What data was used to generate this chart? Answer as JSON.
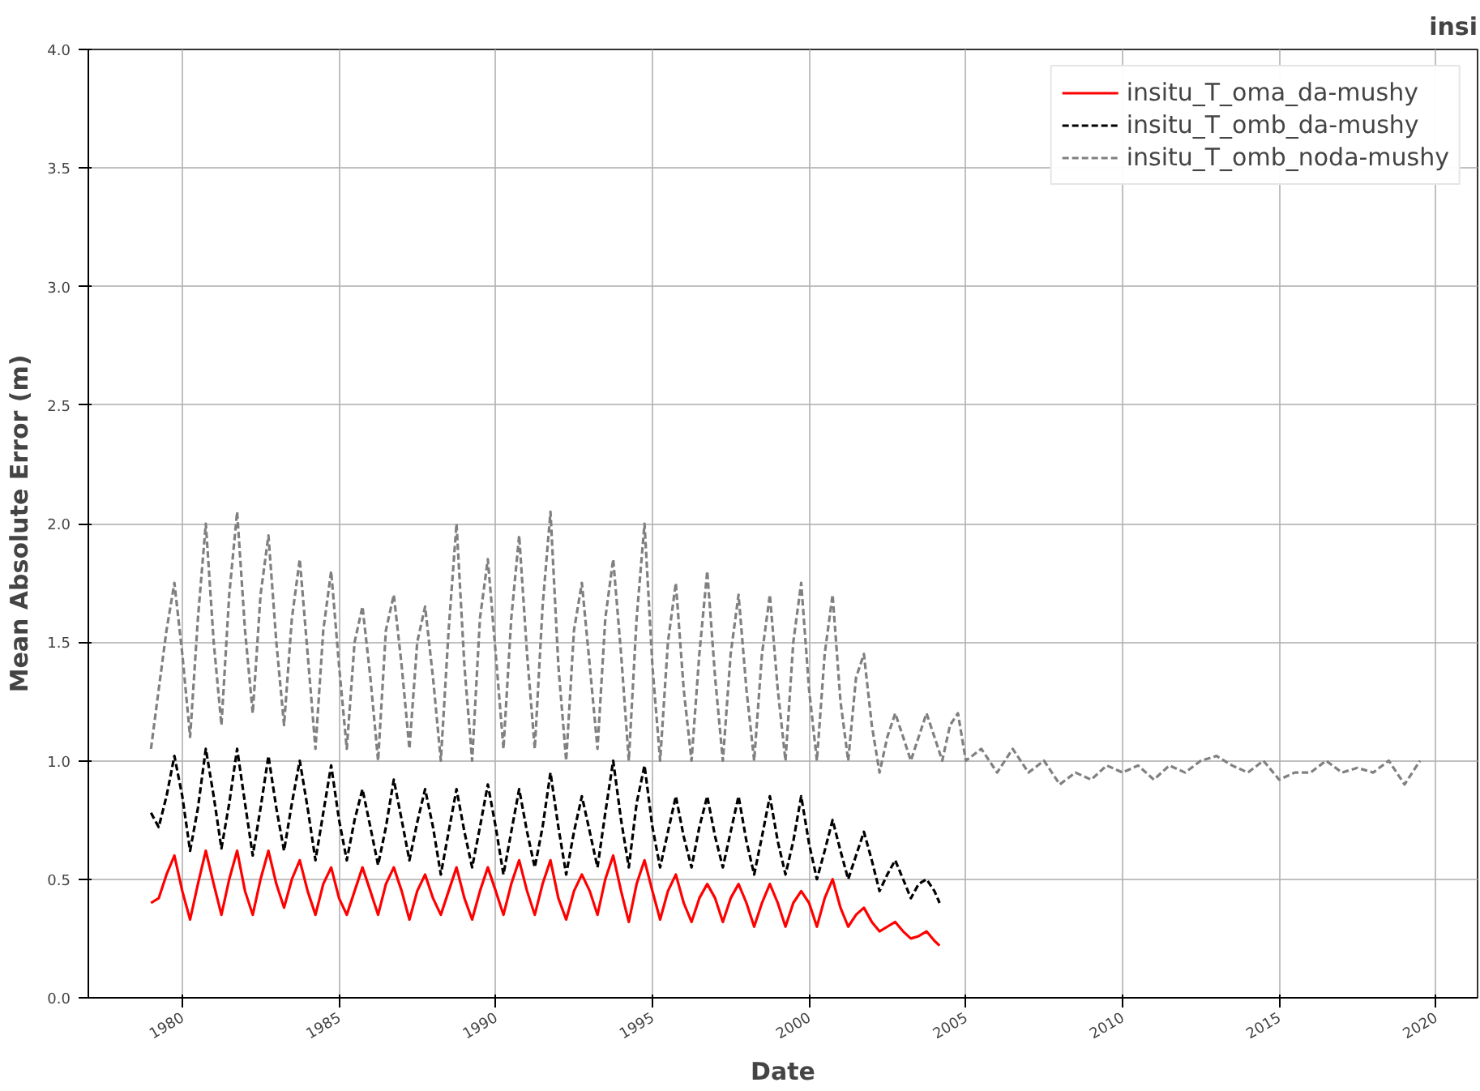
{
  "chart_data": {
    "type": "line",
    "title": "insi",
    "xlabel": "Date",
    "ylabel": "Mean Absolute Error (m)",
    "xlim": [
      "1977-01",
      "2021-05"
    ],
    "ylim": [
      0,
      4
    ],
    "xticks": [
      {
        "value": "1980",
        "label": "1980"
      },
      {
        "value": "1985",
        "label": "1985"
      },
      {
        "value": "1990",
        "label": "1990"
      },
      {
        "value": "1995",
        "label": "1995"
      },
      {
        "value": "2000",
        "label": "2000"
      },
      {
        "value": "2005",
        "label": "2005"
      },
      {
        "value": "2010",
        "label": "2010"
      },
      {
        "value": "2015",
        "label": "2015"
      },
      {
        "value": "2020",
        "label": "2020"
      }
    ],
    "yticks": [
      {
        "value": 0,
        "label": "0.0"
      },
      {
        "value": 0.5,
        "label": "0.5"
      },
      {
        "value": 1,
        "label": "1.0"
      },
      {
        "value": 1.5,
        "label": "1.5"
      },
      {
        "value": 2,
        "label": "2.0"
      },
      {
        "value": 2.5,
        "label": "2.5"
      },
      {
        "value": 3,
        "label": "3.0"
      },
      {
        "value": 3.5,
        "label": "3.5"
      },
      {
        "value": 4,
        "label": "4.0"
      }
    ],
    "grid": true,
    "legend": "top right",
    "series": [
      {
        "name": "insitu_T_oma_da-mushy",
        "color": "#ff0000",
        "line_style": "solid",
        "values": [
          0.4,
          0.42,
          0.52,
          0.6,
          0.45,
          0.33,
          0.48,
          0.62,
          0.48,
          0.35,
          0.5,
          0.62,
          0.45,
          0.35,
          0.5,
          0.62,
          0.48,
          0.38,
          0.5,
          0.58,
          0.45,
          0.35,
          0.48,
          0.55,
          0.42,
          0.35,
          0.45,
          0.55,
          0.45,
          0.35,
          0.48,
          0.55,
          0.45,
          0.33,
          0.45,
          0.52,
          0.42,
          0.35,
          0.45,
          0.55,
          0.42,
          0.33,
          0.45,
          0.55,
          0.45,
          0.35,
          0.48,
          0.58,
          0.45,
          0.35,
          0.48,
          0.58,
          0.42,
          0.33,
          0.45,
          0.52,
          0.45,
          0.35,
          0.5,
          0.6,
          0.45,
          0.32,
          0.48,
          0.58,
          0.45,
          0.33,
          0.45,
          0.52,
          0.4,
          0.32,
          0.42,
          0.48,
          0.42,
          0.32,
          0.42,
          0.48,
          0.4,
          0.3,
          0.4,
          0.48,
          0.4,
          0.3,
          0.4,
          0.45,
          0.4,
          0.3,
          0.42,
          0.5,
          0.38,
          0.3,
          0.35,
          0.38,
          0.32,
          0.28,
          0.3,
          0.32,
          0.28,
          0.25,
          0.26,
          0.28,
          0.24,
          0.22
        ]
      },
      {
        "name": "insitu_T_omb_da-mushy",
        "color": "#000000",
        "line_style": "dashed",
        "values": [
          0.78,
          0.72,
          0.85,
          1.02,
          0.85,
          0.62,
          0.8,
          1.05,
          0.85,
          0.63,
          0.82,
          1.05,
          0.82,
          0.6,
          0.8,
          1.02,
          0.8,
          0.62,
          0.82,
          1.0,
          0.8,
          0.58,
          0.78,
          0.98,
          0.75,
          0.58,
          0.75,
          0.88,
          0.72,
          0.56,
          0.72,
          0.92,
          0.75,
          0.58,
          0.74,
          0.88,
          0.72,
          0.52,
          0.7,
          0.88,
          0.7,
          0.55,
          0.72,
          0.9,
          0.72,
          0.52,
          0.7,
          0.88,
          0.7,
          0.55,
          0.72,
          0.95,
          0.72,
          0.52,
          0.7,
          0.85,
          0.7,
          0.55,
          0.78,
          1.0,
          0.75,
          0.55,
          0.82,
          0.98,
          0.72,
          0.55,
          0.7,
          0.85,
          0.68,
          0.55,
          0.72,
          0.85,
          0.68,
          0.55,
          0.7,
          0.85,
          0.66,
          0.52,
          0.68,
          0.85,
          0.66,
          0.52,
          0.66,
          0.85,
          0.65,
          0.5,
          0.62,
          0.75,
          0.62,
          0.5,
          0.6,
          0.7,
          0.58,
          0.45,
          0.52,
          0.58,
          0.5,
          0.42,
          0.48,
          0.5,
          0.45,
          0.4
        ]
      },
      {
        "name": "insitu_T_omb_noda-mushy",
        "color": "#808080",
        "line_style": "dashed",
        "x": [
          "1979-01",
          "1979-04",
          "1979-07",
          "1979-10",
          "1980-01",
          "1980-04",
          "1980-07",
          "1980-10",
          "1981-01",
          "1981-04",
          "1981-07",
          "1981-10",
          "1982-01",
          "1982-04",
          "1982-07",
          "1982-10",
          "1983-01",
          "1983-04",
          "1983-07",
          "1983-10",
          "1984-01",
          "1984-04",
          "1984-07",
          "1984-10",
          "1985-01",
          "1985-04",
          "1985-07",
          "1985-10",
          "1986-01",
          "1986-04",
          "1986-07",
          "1986-10",
          "1987-01",
          "1987-04",
          "1987-07",
          "1987-10",
          "1988-01",
          "1988-04",
          "1988-07",
          "1988-10",
          "1989-01",
          "1989-04",
          "1989-07",
          "1989-10",
          "1990-01",
          "1990-04",
          "1990-07",
          "1990-10",
          "1991-01",
          "1991-04",
          "1991-07",
          "1991-10",
          "1992-01",
          "1992-04",
          "1992-07",
          "1992-10",
          "1993-01",
          "1993-04",
          "1993-07",
          "1993-10",
          "1994-01",
          "1994-04",
          "1994-07",
          "1994-10",
          "1995-01",
          "1995-04",
          "1995-07",
          "1995-10",
          "1996-01",
          "1996-04",
          "1996-07",
          "1996-10",
          "1997-01",
          "1997-04",
          "1997-07",
          "1997-10",
          "1998-01",
          "1998-04",
          "1998-07",
          "1998-10",
          "1999-01",
          "1999-04",
          "1999-07",
          "1999-10",
          "2000-01",
          "2000-04",
          "2000-07",
          "2000-10",
          "2001-01",
          "2001-04",
          "2001-07",
          "2001-10",
          "2002-01",
          "2002-04",
          "2002-07",
          "2002-10",
          "2003-01",
          "2003-04",
          "2003-07",
          "2003-10",
          "2004-01",
          "2004-04",
          "2004-07",
          "2004-10",
          "2005-01",
          "2005-07",
          "2006-01",
          "2006-07",
          "2007-01",
          "2007-07",
          "2008-01",
          "2008-07",
          "2009-01",
          "2009-07",
          "2010-01",
          "2010-07",
          "2011-01",
          "2011-07",
          "2012-01",
          "2012-07",
          "2013-01",
          "2013-07",
          "2014-01",
          "2014-07",
          "2015-01",
          "2015-07",
          "2016-01",
          "2016-07",
          "2017-01",
          "2017-07",
          "2018-01",
          "2018-07",
          "2019-01",
          "2019-07"
        ],
        "values": [
          1.05,
          1.3,
          1.55,
          1.75,
          1.45,
          1.1,
          1.6,
          2.0,
          1.5,
          1.15,
          1.7,
          2.05,
          1.55,
          1.2,
          1.7,
          1.95,
          1.5,
          1.15,
          1.6,
          1.85,
          1.45,
          1.05,
          1.55,
          1.8,
          1.4,
          1.05,
          1.5,
          1.65,
          1.35,
          1.0,
          1.55,
          1.7,
          1.4,
          1.05,
          1.5,
          1.65,
          1.35,
          1.0,
          1.55,
          2.0,
          1.4,
          1.0,
          1.6,
          1.85,
          1.45,
          1.05,
          1.6,
          1.95,
          1.45,
          1.05,
          1.65,
          2.05,
          1.4,
          1.0,
          1.55,
          1.75,
          1.4,
          1.05,
          1.6,
          1.85,
          1.45,
          1.0,
          1.6,
          2.0,
          1.4,
          1.0,
          1.5,
          1.75,
          1.3,
          1.0,
          1.45,
          1.8,
          1.35,
          1.0,
          1.45,
          1.7,
          1.3,
          1.0,
          1.45,
          1.7,
          1.3,
          1.0,
          1.5,
          1.75,
          1.3,
          1.0,
          1.45,
          1.7,
          1.25,
          1.0,
          1.35,
          1.45,
          1.15,
          0.95,
          1.1,
          1.2,
          1.1,
          1.0,
          1.1,
          1.2,
          1.1,
          1.0,
          1.15,
          1.2,
          1.0,
          1.05,
          0.95,
          1.05,
          0.95,
          1.0,
          0.9,
          0.95,
          0.92,
          0.98,
          0.95,
          0.98,
          0.92,
          0.98,
          0.95,
          1.0,
          1.02,
          0.98,
          0.95,
          1.0,
          0.92,
          0.95,
          0.95,
          1.0,
          0.95,
          0.97,
          0.95,
          1.0,
          0.9,
          1.0
        ]
      }
    ],
    "x": [
      "1979-01",
      "1979-04",
      "1979-07",
      "1979-10",
      "1980-01",
      "1980-04",
      "1980-07",
      "1980-10",
      "1981-01",
      "1981-04",
      "1981-07",
      "1981-10",
      "1982-01",
      "1982-04",
      "1982-07",
      "1982-10",
      "1983-01",
      "1983-04",
      "1983-07",
      "1983-10",
      "1984-01",
      "1984-04",
      "1984-07",
      "1984-10",
      "1985-01",
      "1985-04",
      "1985-07",
      "1985-10",
      "1986-01",
      "1986-04",
      "1986-07",
      "1986-10",
      "1987-01",
      "1987-04",
      "1987-07",
      "1987-10",
      "1988-01",
      "1988-04",
      "1988-07",
      "1988-10",
      "1989-01",
      "1989-04",
      "1989-07",
      "1989-10",
      "1990-01",
      "1990-04",
      "1990-07",
      "1990-10",
      "1991-01",
      "1991-04",
      "1991-07",
      "1991-10",
      "1992-01",
      "1992-04",
      "1992-07",
      "1992-10",
      "1993-01",
      "1993-04",
      "1993-07",
      "1993-10",
      "1994-01",
      "1994-04",
      "1994-07",
      "1994-10",
      "1995-01",
      "1995-04",
      "1995-07",
      "1995-10",
      "1996-01",
      "1996-04",
      "1996-07",
      "1996-10",
      "1997-01",
      "1997-04",
      "1997-07",
      "1997-10",
      "1998-01",
      "1998-04",
      "1998-07",
      "1998-10",
      "1999-01",
      "1999-04",
      "1999-07",
      "1999-10",
      "2000-01",
      "2000-04",
      "2000-07",
      "2000-10",
      "2001-01",
      "2001-04",
      "2001-07",
      "2001-10",
      "2002-01",
      "2002-04",
      "2002-07",
      "2002-10",
      "2003-01",
      "2003-04",
      "2003-07",
      "2003-10",
      "2004-01",
      "2004-03"
    ]
  }
}
